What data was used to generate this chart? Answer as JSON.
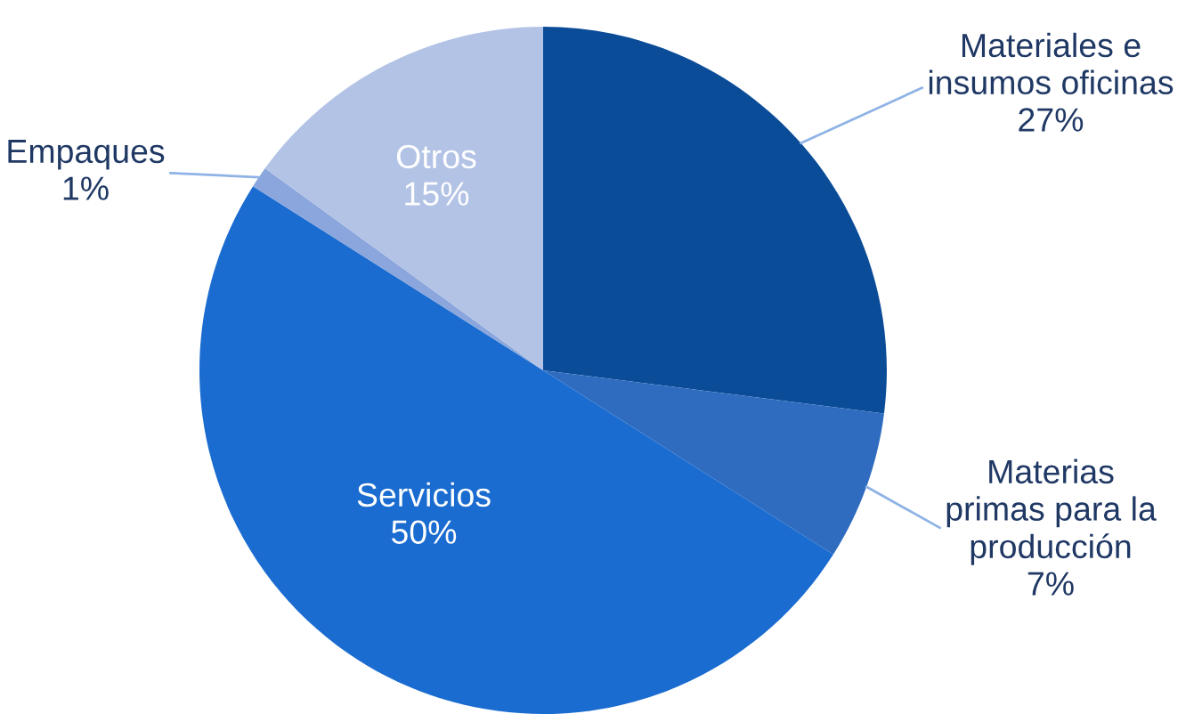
{
  "chart_data": {
    "type": "pie",
    "categories": [
      "Materiales e\ninsumos oficinas",
      "Materias\nprimas para la\nproducción",
      "Servicios",
      "Empaques",
      "Otros"
    ],
    "values": [
      27,
      7,
      50,
      1,
      15
    ],
    "value_labels": [
      "27%",
      "7%",
      "50%",
      "1%",
      "15%"
    ],
    "colors": [
      "#0b4c98",
      "#2f6cc0",
      "#1a6cd0",
      "#8aa6dc",
      "#b3c3e5"
    ],
    "legend": false
  }
}
